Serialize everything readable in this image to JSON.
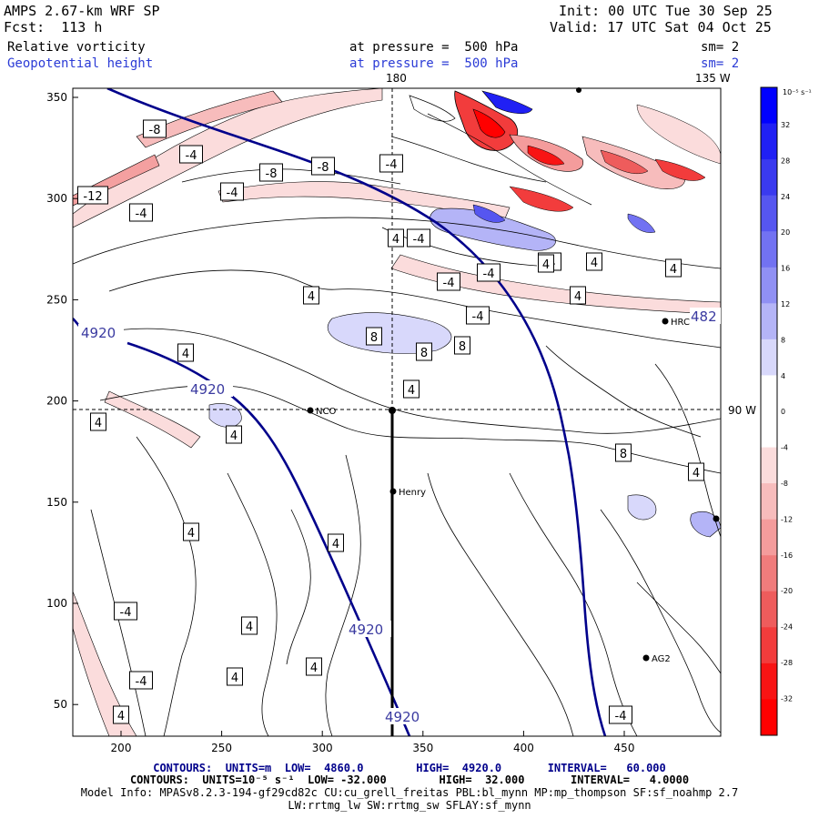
{
  "header": {
    "model": "AMPS 2.67-km WRF SP",
    "forecast": "Fcst:  113 h",
    "init": "Init: 00 UTC Tue 30 Sep 25",
    "valid": "Valid: 17 UTC Sat 04 Oct 25",
    "field1_name": "Relative vorticity",
    "field1_level": "at pressure =  500 hPa",
    "field1_sm": "sm= 2",
    "field2_name": "Geopotential height",
    "field2_level": "at pressure =  500 hPa",
    "field2_sm": "sm= 2"
  },
  "map": {
    "lon_top_left": "180",
    "lon_top_right": "135 W",
    "lon_right": "90 W",
    "x_ticks": [
      "200",
      "250",
      "300",
      "350",
      "400",
      "450"
    ],
    "y_ticks": [
      "350",
      "300",
      "250",
      "200",
      "150",
      "100",
      "50"
    ]
  },
  "colorbar": {
    "unit": "10⁻⁵ s⁻¹",
    "labels": [
      "32",
      "28",
      "24",
      "20",
      "16",
      "12",
      "8",
      "4",
      "0",
      "-4",
      "-8",
      "-12",
      "-16",
      "-20",
      "-24",
      "-28",
      "-32"
    ],
    "colors": [
      "#0000ff",
      "#2020f4",
      "#3a3aef",
      "#5656f0",
      "#7272f2",
      "#9090f4",
      "#b4b4f7",
      "#d8d8fb",
      "#ffffff",
      "#ffffff",
      "#fbdcdc",
      "#f7bcbc",
      "#f49c9c",
      "#f07c7c",
      "#ee5c5c",
      "#f23c3c",
      "#f81414",
      "#ff0000"
    ]
  },
  "stations": [
    "NCO",
    "HRC",
    "Henry",
    "AG2"
  ],
  "vorticity_labels": [
    "-8",
    "-4",
    "-8",
    "-4",
    "-8",
    "-4",
    "-12",
    "-4",
    "-4",
    "-4",
    "-4",
    "-4",
    "4",
    "4",
    "4",
    "-4",
    "4",
    "8",
    "8",
    "8",
    "4",
    "4",
    "4",
    "4",
    "8",
    "4",
    "4",
    "4",
    "4",
    "4",
    "-4",
    "-4",
    "4",
    "4",
    "-4",
    "4",
    "4"
  ],
  "height_labels": [
    "4920",
    "4920",
    "4920",
    "4920",
    "482"
  ],
  "footer": {
    "line1": "CONTOURS:  UNITS=m  LOW=  4860.0        HIGH=  4920.0       INTERVAL=   60.000",
    "line2": "CONTOURS:  UNITS=10⁻⁵ s⁻¹  LOW= -32.000        HIGH=  32.000       INTERVAL=   4.0000",
    "line3": "Model Info: MPASv8.2.3-194-gf29cd82c CU:cu_grell_freitas PBL:bl_mynn MP:mp_thompson SF:sf_noahmp 2.7",
    "line4": "LW:rrtmg_lw SW:rrtmg_sw SFLAY:sf_mynn"
  }
}
